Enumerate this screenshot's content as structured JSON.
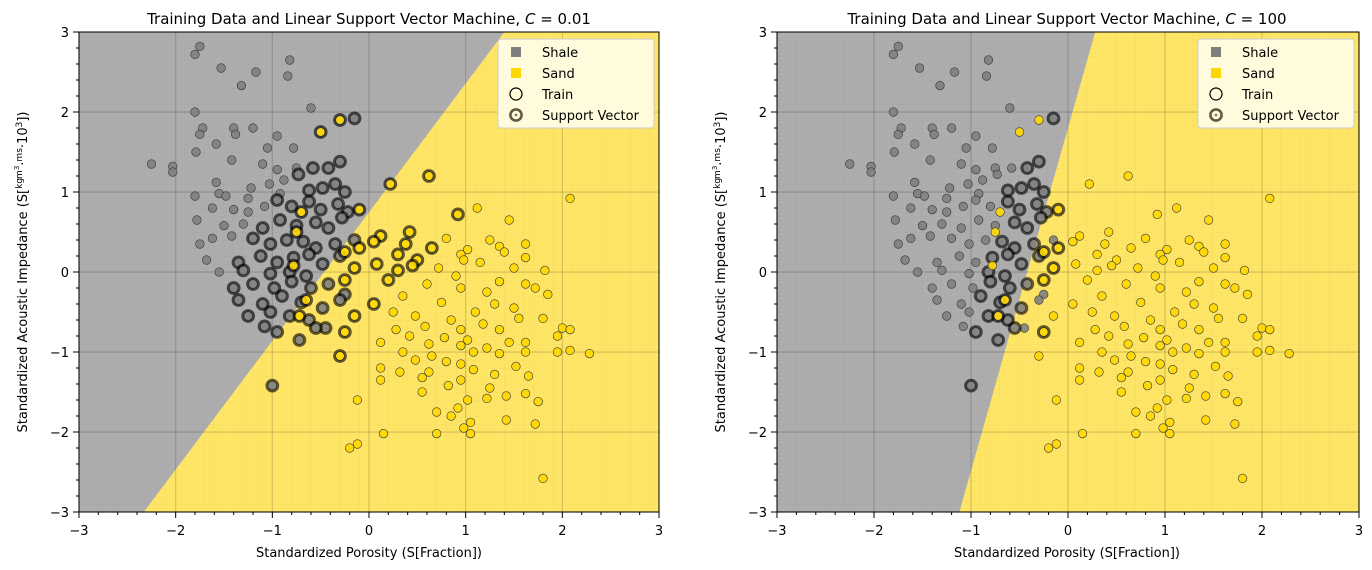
{
  "chart_data": [
    {
      "type": "scatter",
      "title_prefix": "Training Data and Linear Support Vector Machine, ",
      "title_param": "C",
      "title_suffix": " = 0.01",
      "xlabel": "Standardized Porosity (S[Fraction])",
      "ylabel_pre": "Standardized Acoustic Impedance (S[",
      "ylabel_kg": "kg",
      "ylabel_m3": "m",
      "ylabel_sup3": "3",
      "ylabel_dot1": "·",
      "ylabel_m": "m",
      "ylabel_s": "s",
      "ylabel_dot2": "·",
      "ylabel_ten": "10",
      "ylabel_end": "])",
      "xlim": [
        -3,
        3
      ],
      "ylim": [
        -3,
        3
      ],
      "x_ticks": [
        "−3",
        "−2",
        "−1",
        "0",
        "1",
        "2",
        "3"
      ],
      "y_ticks": [
        "−3",
        "−2",
        "−1",
        "0",
        "1",
        "2",
        "3"
      ],
      "boundary": {
        "x_at_ymin": -2.33,
        "x_at_ymax": 1.4
      },
      "legend": [
        "Shale",
        "Sand",
        "Train",
        "Support Vector"
      ],
      "support_vector_rule": {
        "shale_x_gt": -1.5,
        "sand_x_lt": 1.0
      }
    },
    {
      "type": "scatter",
      "title_prefix": "Training Data and Linear Support Vector Machine, ",
      "title_param": "C",
      "title_suffix": " = 100",
      "xlabel": "Standardized Porosity (S[Fraction])",
      "ylabel_pre": "Standardized Acoustic Impedance (S[",
      "ylabel_kg": "kg",
      "ylabel_m3": "m",
      "ylabel_sup3": "3",
      "ylabel_dot1": "·",
      "ylabel_m": "m",
      "ylabel_s": "s",
      "ylabel_dot2": "·",
      "ylabel_ten": "10",
      "ylabel_end": "])",
      "xlim": [
        -3,
        3
      ],
      "ylim": [
        -3,
        3
      ],
      "x_ticks": [
        "−3",
        "−2",
        "−1",
        "0",
        "1",
        "2",
        "3"
      ],
      "y_ticks": [
        "−3",
        "−2",
        "−1",
        "0",
        "1",
        "2",
        "3"
      ],
      "boundary": {
        "x_at_ymin": -1.12,
        "x_at_ymax": 0.28
      },
      "legend": [
        "Shale",
        "Sand",
        "Train",
        "Support Vector"
      ],
      "support_vector_rule": {
        "band_left": -0.55,
        "band_right": 0.3
      }
    }
  ],
  "classes": {
    "shale": [
      [
        -1.75,
        2.82
      ],
      [
        -1.8,
        2.72
      ],
      [
        -0.82,
        2.65
      ],
      [
        -1.53,
        2.55
      ],
      [
        -1.17,
        2.5
      ],
      [
        -0.84,
        2.45
      ],
      [
        -1.32,
        2.33
      ],
      [
        -1.8,
        2.0
      ],
      [
        -0.6,
        2.05
      ],
      [
        -1.72,
        1.8
      ],
      [
        -1.75,
        1.72
      ],
      [
        -0.15,
        1.92
      ],
      [
        -1.4,
        1.8
      ],
      [
        -1.38,
        1.72
      ],
      [
        -1.2,
        1.8
      ],
      [
        -0.95,
        1.7
      ],
      [
        -1.58,
        1.6
      ],
      [
        -1.05,
        1.55
      ],
      [
        -1.79,
        1.5
      ],
      [
        -1.42,
        1.4
      ],
      [
        -2.25,
        1.35
      ],
      [
        -2.03,
        1.32
      ],
      [
        -2.03,
        1.25
      ],
      [
        -1.1,
        1.35
      ],
      [
        -0.95,
        1.28
      ],
      [
        -0.78,
        1.55
      ],
      [
        -0.75,
        1.3
      ],
      [
        -0.58,
        1.3
      ],
      [
        -0.42,
        1.3
      ],
      [
        -0.3,
        1.38
      ],
      [
        -1.58,
        1.12
      ],
      [
        -1.22,
        1.05
      ],
      [
        -1.55,
        0.98
      ],
      [
        -1.03,
        1.1
      ],
      [
        -0.88,
        1.15
      ],
      [
        -0.73,
        1.22
      ],
      [
        -0.62,
        1.02
      ],
      [
        -0.48,
        1.05
      ],
      [
        -0.35,
        1.1
      ],
      [
        -0.25,
        1.0
      ],
      [
        -1.8,
        0.95
      ],
      [
        -1.48,
        0.95
      ],
      [
        -1.25,
        0.92
      ],
      [
        -0.92,
        0.98
      ],
      [
        -1.62,
        0.8
      ],
      [
        -1.4,
        0.78
      ],
      [
        -1.25,
        0.75
      ],
      [
        -1.08,
        0.82
      ],
      [
        -0.95,
        0.9
      ],
      [
        -0.8,
        0.82
      ],
      [
        -0.62,
        0.88
      ],
      [
        -0.5,
        0.78
      ],
      [
        -0.32,
        0.85
      ],
      [
        -0.22,
        0.75
      ],
      [
        -1.78,
        0.65
      ],
      [
        -1.5,
        0.58
      ],
      [
        -1.3,
        0.6
      ],
      [
        -1.1,
        0.55
      ],
      [
        -0.92,
        0.65
      ],
      [
        -0.75,
        0.58
      ],
      [
        -0.55,
        0.62
      ],
      [
        -0.42,
        0.55
      ],
      [
        -0.28,
        0.68
      ],
      [
        -1.75,
        0.35
      ],
      [
        -1.62,
        0.42
      ],
      [
        -1.42,
        0.45
      ],
      [
        -1.2,
        0.42
      ],
      [
        -1.02,
        0.35
      ],
      [
        -0.85,
        0.4
      ],
      [
        -0.68,
        0.38
      ],
      [
        -0.55,
        0.3
      ],
      [
        -0.35,
        0.35
      ],
      [
        -0.15,
        0.4
      ],
      [
        -1.68,
        0.15
      ],
      [
        -1.35,
        0.12
      ],
      [
        -1.12,
        0.2
      ],
      [
        -0.95,
        0.12
      ],
      [
        -0.78,
        0.18
      ],
      [
        -0.62,
        0.22
      ],
      [
        -0.48,
        0.1
      ],
      [
        -0.3,
        0.2
      ],
      [
        -1.55,
        0.0
      ],
      [
        -1.3,
        0.02
      ],
      [
        -1.02,
        -0.02
      ],
      [
        -0.82,
        0.0
      ],
      [
        -0.65,
        -0.05
      ],
      [
        -1.4,
        -0.2
      ],
      [
        -1.2,
        -0.15
      ],
      [
        -0.98,
        -0.2
      ],
      [
        -0.8,
        -0.12
      ],
      [
        -0.6,
        -0.2
      ],
      [
        -0.42,
        -0.15
      ],
      [
        -0.25,
        -0.28
      ],
      [
        -1.35,
        -0.35
      ],
      [
        -1.1,
        -0.4
      ],
      [
        -0.9,
        -0.3
      ],
      [
        -0.7,
        -0.38
      ],
      [
        -0.48,
        -0.45
      ],
      [
        -0.3,
        -0.35
      ],
      [
        -1.25,
        -0.55
      ],
      [
        -1.02,
        -0.5
      ],
      [
        -0.82,
        -0.55
      ],
      [
        -0.62,
        -0.6
      ],
      [
        -0.45,
        -0.7
      ],
      [
        -1.08,
        -0.68
      ],
      [
        -0.95,
        -0.75
      ],
      [
        -0.72,
        -0.85
      ],
      [
        -0.55,
        -0.7
      ],
      [
        -1.0,
        -1.42
      ]
    ],
    "sand": [
      [
        -0.3,
        1.9
      ],
      [
        -0.5,
        1.75
      ],
      [
        0.62,
        1.2
      ],
      [
        0.22,
        1.1
      ],
      [
        2.08,
        0.92
      ],
      [
        1.45,
        0.65
      ],
      [
        0.92,
        0.72
      ],
      [
        1.12,
        0.8
      ],
      [
        -0.7,
        0.75
      ],
      [
        -0.75,
        0.5
      ],
      [
        -0.1,
        0.78
      ],
      [
        0.42,
        0.5
      ],
      [
        0.12,
        0.45
      ],
      [
        0.8,
        0.42
      ],
      [
        1.25,
        0.4
      ],
      [
        0.05,
        0.38
      ],
      [
        0.38,
        0.35
      ],
      [
        -0.1,
        0.3
      ],
      [
        0.65,
        0.3
      ],
      [
        1.02,
        0.28
      ],
      [
        1.35,
        0.32
      ],
      [
        1.62,
        0.35
      ],
      [
        1.4,
        0.25
      ],
      [
        0.95,
        0.22
      ],
      [
        0.3,
        0.22
      ],
      [
        -0.25,
        0.25
      ],
      [
        1.62,
        0.18
      ],
      [
        0.5,
        0.15
      ],
      [
        -0.78,
        0.08
      ],
      [
        0.98,
        0.15
      ],
      [
        0.08,
        0.1
      ],
      [
        0.45,
        0.08
      ],
      [
        0.72,
        0.05
      ],
      [
        1.15,
        0.12
      ],
      [
        0.3,
        0.02
      ],
      [
        -0.15,
        0.05
      ],
      [
        1.5,
        0.05
      ],
      [
        1.82,
        0.02
      ],
      [
        -0.25,
        -0.1
      ],
      [
        0.9,
        -0.05
      ],
      [
        0.2,
        -0.1
      ],
      [
        1.35,
        -0.12
      ],
      [
        0.6,
        -0.15
      ],
      [
        1.62,
        -0.15
      ],
      [
        1.72,
        -0.2
      ],
      [
        0.95,
        -0.2
      ],
      [
        1.22,
        -0.25
      ],
      [
        1.85,
        -0.28
      ],
      [
        -0.65,
        -0.35
      ],
      [
        0.35,
        -0.3
      ],
      [
        0.75,
        -0.38
      ],
      [
        1.3,
        -0.4
      ],
      [
        0.05,
        -0.4
      ],
      [
        1.5,
        -0.45
      ],
      [
        0.25,
        -0.5
      ],
      [
        0.48,
        -0.55
      ],
      [
        1.1,
        -0.5
      ],
      [
        -0.72,
        -0.55
      ],
      [
        -0.15,
        -0.55
      ],
      [
        0.85,
        -0.6
      ],
      [
        1.55,
        -0.58
      ],
      [
        1.8,
        -0.58
      ],
      [
        2.0,
        -0.7
      ],
      [
        0.58,
        -0.68
      ],
      [
        1.18,
        -0.65
      ],
      [
        0.28,
        -0.72
      ],
      [
        0.95,
        -0.72
      ],
      [
        1.35,
        -0.72
      ],
      [
        2.08,
        -0.72
      ],
      [
        -0.25,
        -0.75
      ],
      [
        0.42,
        -0.8
      ],
      [
        0.78,
        -0.82
      ],
      [
        1.02,
        -0.85
      ],
      [
        1.62,
        -0.88
      ],
      [
        1.95,
        -0.8
      ],
      [
        1.45,
        -0.88
      ],
      [
        0.12,
        -0.88
      ],
      [
        0.62,
        -0.9
      ],
      [
        0.95,
        -0.92
      ],
      [
        1.22,
        -0.95
      ],
      [
        1.62,
        -1.0
      ],
      [
        1.95,
        -1.0
      ],
      [
        2.28,
        -1.02
      ],
      [
        0.35,
        -1.0
      ],
      [
        0.65,
        -1.05
      ],
      [
        1.08,
        -1.0
      ],
      [
        1.35,
        -1.02
      ],
      [
        2.08,
        -0.98
      ],
      [
        -0.3,
        -1.05
      ],
      [
        0.48,
        -1.1
      ],
      [
        0.8,
        -1.12
      ],
      [
        0.95,
        -1.15
      ],
      [
        1.52,
        -1.18
      ],
      [
        0.12,
        -1.2
      ],
      [
        0.32,
        -1.25
      ],
      [
        0.62,
        -1.25
      ],
      [
        1.08,
        -1.22
      ],
      [
        1.3,
        -1.28
      ],
      [
        0.55,
        -1.32
      ],
      [
        0.12,
        -1.35
      ],
      [
        0.95,
        -1.35
      ],
      [
        1.65,
        -1.3
      ],
      [
        0.82,
        -1.42
      ],
      [
        1.25,
        -1.45
      ],
      [
        0.55,
        -1.5
      ],
      [
        1.42,
        -1.55
      ],
      [
        1.62,
        -1.52
      ],
      [
        1.22,
        -1.58
      ],
      [
        -0.12,
        -1.6
      ],
      [
        1.02,
        -1.6
      ],
      [
        0.92,
        -1.7
      ],
      [
        1.75,
        -1.62
      ],
      [
        0.7,
        -1.75
      ],
      [
        0.85,
        -1.8
      ],
      [
        1.42,
        -1.85
      ],
      [
        1.05,
        -1.88
      ],
      [
        1.72,
        -1.9
      ],
      [
        0.98,
        -1.95
      ],
      [
        0.15,
        -2.02
      ],
      [
        0.7,
        -2.02
      ],
      [
        1.05,
        -2.02
      ],
      [
        -0.12,
        -2.15
      ],
      [
        -0.2,
        -2.2
      ],
      [
        1.8,
        -2.58
      ]
    ]
  }
}
